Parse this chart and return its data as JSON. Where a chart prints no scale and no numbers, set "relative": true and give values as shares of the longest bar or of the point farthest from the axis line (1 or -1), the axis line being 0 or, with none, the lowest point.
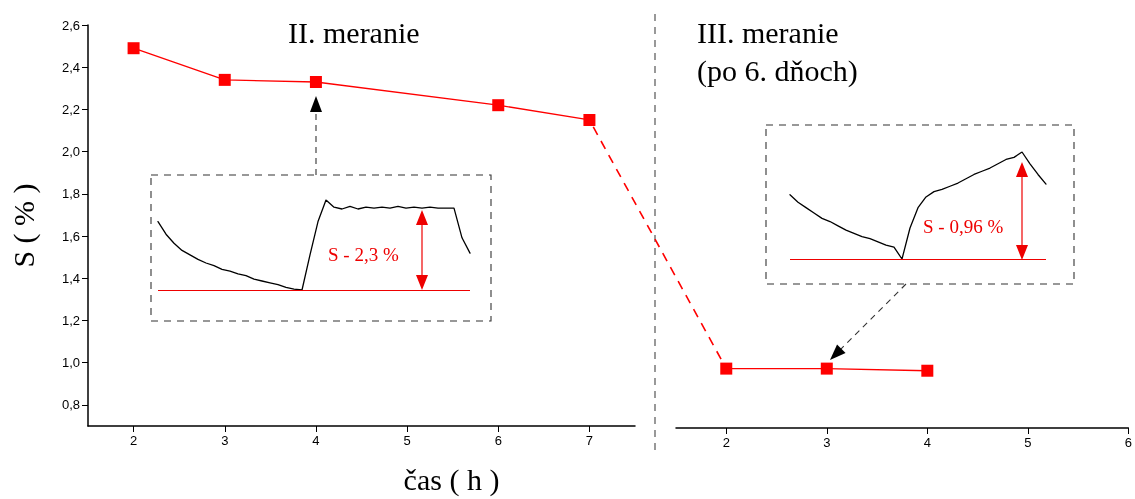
{
  "chart_data": [
    {
      "type": "line",
      "title": "II. meranie",
      "xlabel": "čas ( h )",
      "ylabel": "S ( % )",
      "x": [
        2,
        3,
        4,
        6,
        7
      ],
      "values": [
        2.49,
        2.34,
        2.33,
        2.22,
        2.15
      ],
      "color": "#ff0000",
      "marker": "square",
      "line_style": "solid",
      "xlim": [
        1.5,
        7.5
      ],
      "xticks": [
        2,
        3,
        4,
        5,
        6,
        7
      ],
      "ylim": [
        0.7,
        2.6
      ],
      "yticks": [
        {
          "value": 0.8,
          "label": "0,8"
        },
        {
          "value": 1.0,
          "label": "1,0"
        },
        {
          "value": 1.2,
          "label": "1,2"
        },
        {
          "value": 1.4,
          "label": "1,4"
        },
        {
          "value": 1.6,
          "label": "1,6"
        },
        {
          "value": 1.8,
          "label": "1,8"
        },
        {
          "value": 2.0,
          "label": "2,0"
        },
        {
          "value": 2.2,
          "label": "2,2"
        },
        {
          "value": 2.4,
          "label": "2,4"
        },
        {
          "value": 2.6,
          "label": "2,6"
        }
      ]
    },
    {
      "type": "line",
      "title": "III. meranie\n(po 6. dňoch)",
      "x": [
        2,
        3,
        4
      ],
      "values": [
        0.98,
        0.98,
        0.97
      ],
      "color": "#ff0000",
      "marker": "square",
      "line_style": "solid",
      "xlim": [
        1.5,
        6
      ],
      "xticks": [
        2,
        3,
        4,
        5,
        6
      ],
      "ylim": [
        0.7,
        2.6
      ],
      "tick_labels": "x"
    },
    {
      "type": "line",
      "relative": true,
      "categories": [
        null,
        null,
        null,
        null,
        null,
        null,
        null,
        null,
        null,
        null,
        null,
        null,
        null,
        null,
        null,
        null,
        null,
        null,
        null,
        null,
        null,
        null,
        null,
        null,
        null,
        null,
        null,
        null,
        null,
        null,
        null,
        null,
        null,
        null,
        null,
        null,
        null,
        null,
        null,
        null
      ],
      "values": [
        0.76,
        0.62,
        0.52,
        0.44,
        0.39,
        0.34,
        0.3,
        0.27,
        0.23,
        0.21,
        0.18,
        0.16,
        0.12,
        0.1,
        0.08,
        0.06,
        0.03,
        0.01,
        0,
        0.39,
        0.76,
        1,
        0.92,
        0.9,
        0.93,
        0.9,
        0.92,
        0.91,
        0.92,
        0.91,
        0.93,
        0.91,
        0.92,
        0.91,
        0.92,
        0.91,
        0.91,
        0.91,
        0.58,
        0.41
      ],
      "color": "#000000",
      "marker": "none",
      "ref_lines": [
        {
          "axis": "y",
          "value": 0,
          "color": "#ee0000"
        }
      ],
      "annotations": [
        "S - 2,3 %"
      ]
    },
    {
      "type": "line",
      "relative": true,
      "categories": [
        null,
        null,
        null,
        null,
        null,
        null,
        null,
        null,
        null,
        null,
        null,
        null,
        null,
        null,
        null,
        null,
        null,
        null,
        null,
        null,
        null,
        null,
        null,
        null,
        null,
        null,
        null,
        null,
        null,
        null,
        null,
        null,
        null
      ],
      "values": [
        0.6,
        0.53,
        0.48,
        0.43,
        0.38,
        0.35,
        0.31,
        0.27,
        0.24,
        0.21,
        0.19,
        0.16,
        0.13,
        0.11,
        0,
        0.29,
        0.48,
        0.58,
        0.63,
        0.65,
        0.68,
        0.71,
        0.75,
        0.79,
        0.82,
        0.85,
        0.89,
        0.93,
        0.95,
        1,
        0.89,
        0.79,
        0.7
      ],
      "color": "#000000",
      "marker": "none",
      "ref_lines": [
        {
          "axis": "y",
          "value": 0,
          "color": "#ee0000"
        }
      ],
      "annotations": [
        "S - 0,96 %"
      ]
    }
  ]
}
